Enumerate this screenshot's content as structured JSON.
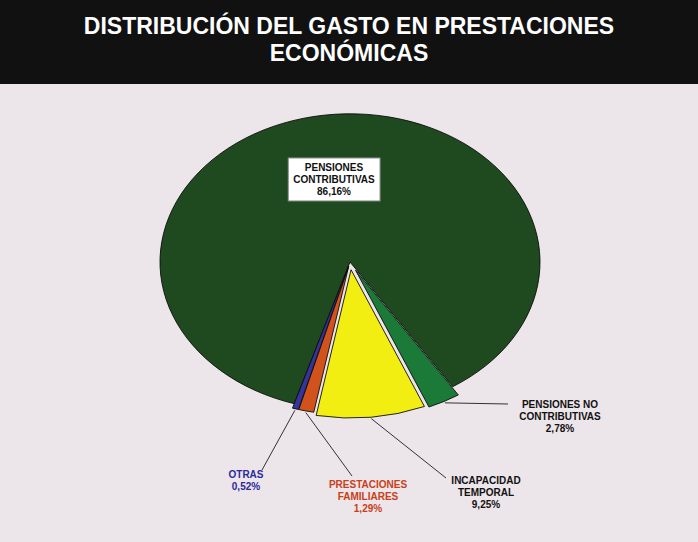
{
  "chart_data": {
    "type": "pie",
    "title": "DISTRIBUCIÓN DEL GASTO EN PRESTACIONES ECONÓMICAS",
    "categories": [
      "PENSIONES CONTRIBUTIVAS",
      "PENSIONES NO CONTRIBUTIVAS",
      "INCAPACIDAD TEMPORAL",
      "PRESTACIONES FAMILIARES",
      "OTRAS"
    ],
    "values": [
      86.16,
      2.78,
      9.25,
      1.29,
      0.52
    ],
    "value_labels": [
      "86,16%",
      "2,78%",
      "9,25%",
      "1,29%",
      "0,52%"
    ],
    "colors": [
      "#1f4a1f",
      "#1c7a38",
      "#f2ee12",
      "#d2521c",
      "#34349c"
    ],
    "data_labels": true
  }
}
